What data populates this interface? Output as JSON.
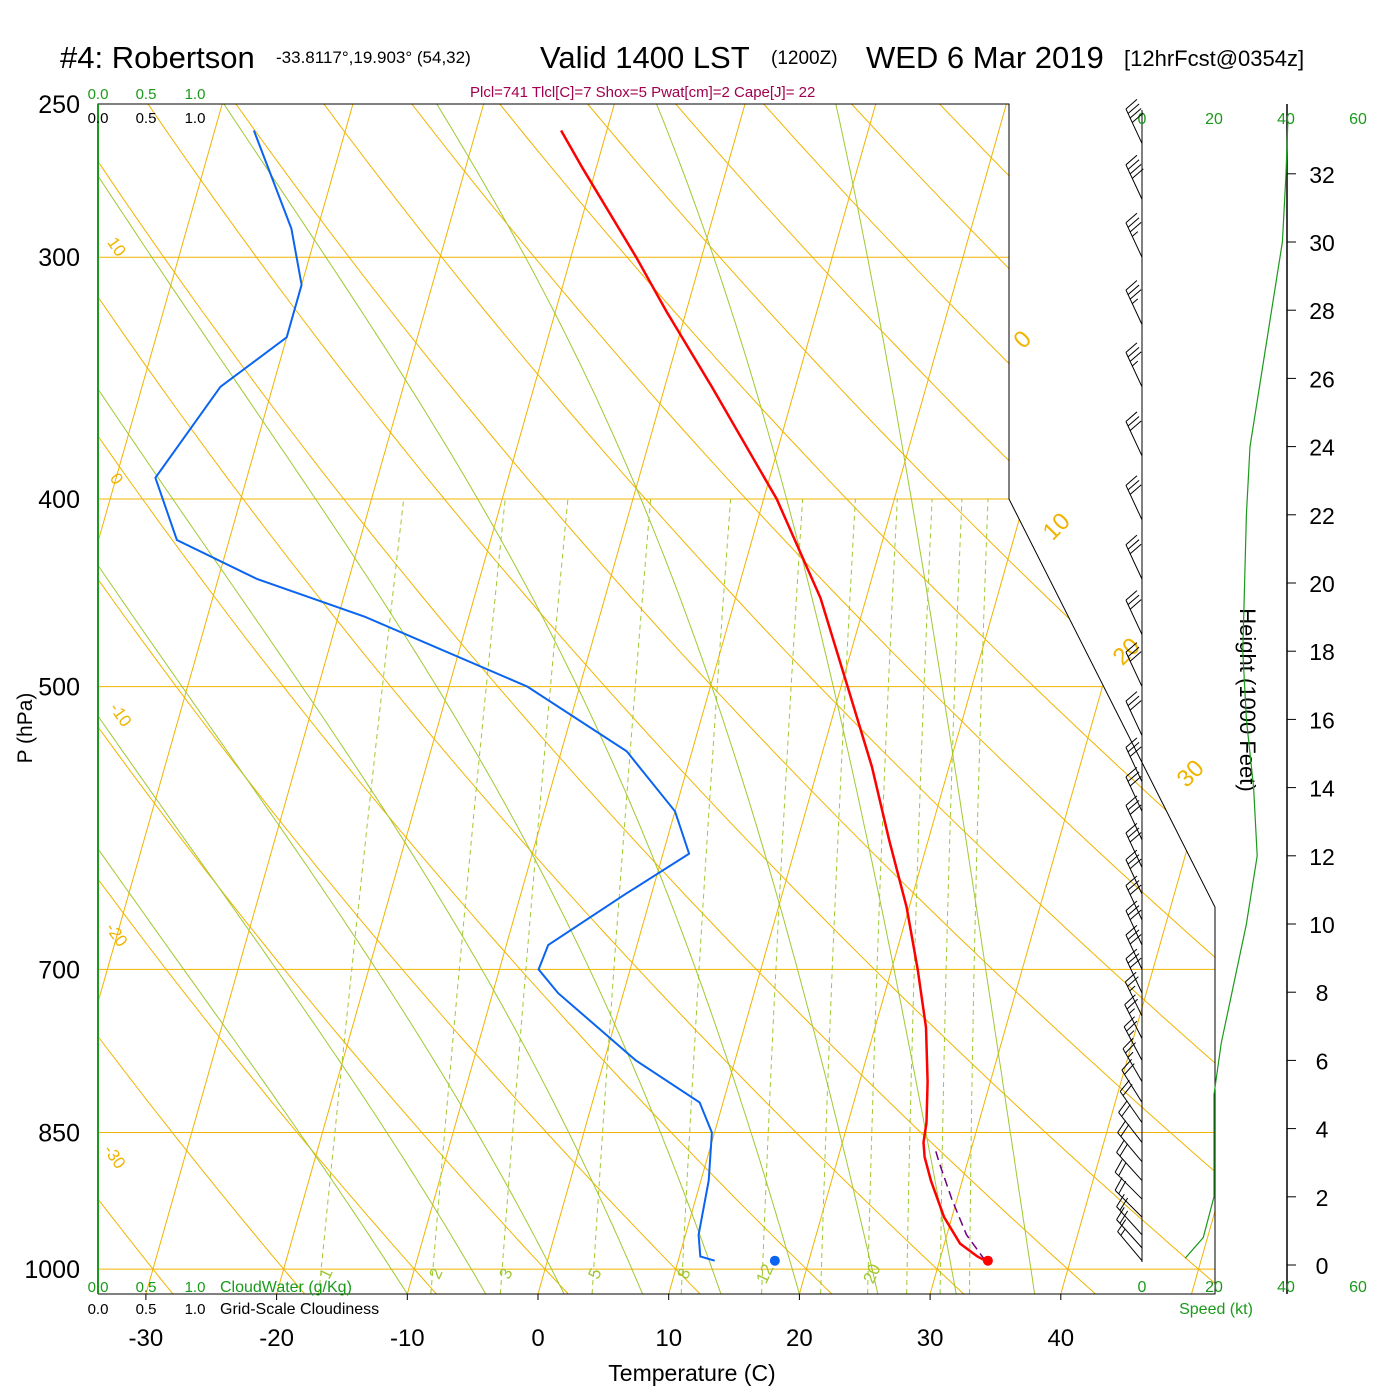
{
  "header": {
    "station": "#4: Robertson",
    "coords": "-33.8117°,19.903° (54,32)",
    "valid": "Valid 1400 LST",
    "zulu": "(1200Z)",
    "date": "WED 6 Mar 2019",
    "forecast": "[12hrFcst@0354z]",
    "stats": "Plcl=741 Tlcl[C]=7 Shox=5 Pwat[cm]=2 Cape[J]= 22"
  },
  "colors": {
    "temperature": "#ff0000",
    "dewpoint": "#0a64f0",
    "isobar_isotherm": "#f0b400",
    "dry_adiabat": "#f0b400",
    "moist_adiabat": "#a0c832",
    "mixing_ratio": "#a0c832",
    "wind_speed": "#1a9a1a",
    "parcel": "#6e0080",
    "cloud_axis": "#1a9a1a"
  },
  "chart_data": {
    "type": "skew-t log-p sounding",
    "xlabel": "Temperature (C)",
    "ylabel": "P (hPa)",
    "right_label": "Height (1000 Feet)",
    "x_ticks": [
      -30,
      -20,
      -10,
      0,
      10,
      20,
      30,
      40
    ],
    "pressure_ticks": [
      250,
      300,
      400,
      500,
      700,
      850,
      1000
    ],
    "height_ticks": [
      0,
      2,
      4,
      6,
      8,
      10,
      12,
      14,
      16,
      18,
      20,
      22,
      24,
      26,
      28,
      30,
      32
    ],
    "temp_range": [
      -34,
      36
    ],
    "pressure_range": [
      1030,
      250
    ],
    "isotherm_labels": [
      "0",
      "10",
      "20",
      "30"
    ],
    "dry_adiabat_labels": [
      "10",
      "0",
      "-10",
      "-20",
      "-30"
    ],
    "mixing_ratio_labels": [
      "1",
      "2",
      "3",
      "5",
      "8",
      "12",
      "20"
    ],
    "cloud_axis_top": {
      "cloudwater": [
        "0.0",
        "0.5",
        "1.0"
      ],
      "cloudiness": [
        "0.0",
        "0.5",
        "1.0"
      ]
    },
    "cloud_axis_bottom": {
      "cloudwater": [
        "0.0",
        "0.5",
        "1.0"
      ],
      "cloudwater_label": "CloudWater (g/Kg)",
      "cloudiness": [
        "0.0",
        "0.5",
        "1.0"
      ],
      "cloudiness_label": "Grid-Scale Cloudiness"
    },
    "wind_speed_ticks": [
      "0",
      "20",
      "40",
      "60"
    ],
    "wind_speed_label": "Speed (kt)",
    "temperature_profile": [
      {
        "p": 990,
        "t": 33.5
      },
      {
        "p": 985,
        "t": 32.8
      },
      {
        "p": 970,
        "t": 31.2
      },
      {
        "p": 940,
        "t": 29.4
      },
      {
        "p": 900,
        "t": 27.6
      },
      {
        "p": 875,
        "t": 26.6
      },
      {
        "p": 860,
        "t": 26.2
      },
      {
        "p": 840,
        "t": 26.0
      },
      {
        "p": 800,
        "t": 25.2
      },
      {
        "p": 750,
        "t": 23.9
      },
      {
        "p": 700,
        "t": 22.0
      },
      {
        "p": 650,
        "t": 19.8
      },
      {
        "p": 600,
        "t": 17.0
      },
      {
        "p": 550,
        "t": 14.1
      },
      {
        "p": 500,
        "t": 10.5
      },
      {
        "p": 450,
        "t": 6.5
      },
      {
        "p": 400,
        "t": 1.0
      },
      {
        "p": 350,
        "t": -6.4
      },
      {
        "p": 320,
        "t": -11.5
      },
      {
        "p": 300,
        "t": -15.0
      },
      {
        "p": 270,
        "t": -21.0
      },
      {
        "p": 258,
        "t": -23.5
      }
    ],
    "dewpoint_profile": [
      {
        "p": 990,
        "t": 12.8
      },
      {
        "p": 985,
        "t": 11.6
      },
      {
        "p": 960,
        "t": 11.0
      },
      {
        "p": 900,
        "t": 10.6
      },
      {
        "p": 850,
        "t": 9.8
      },
      {
        "p": 820,
        "t": 8.2
      },
      {
        "p": 780,
        "t": 2.4
      },
      {
        "p": 720,
        "t": -5.0
      },
      {
        "p": 700,
        "t": -7.0
      },
      {
        "p": 680,
        "t": -6.8
      },
      {
        "p": 640,
        "t": -2.0
      },
      {
        "p": 610,
        "t": 2.0
      },
      {
        "p": 580,
        "t": 0.0
      },
      {
        "p": 540,
        "t": -5.0
      },
      {
        "p": 500,
        "t": -14.0
      },
      {
        "p": 460,
        "t": -28.0
      },
      {
        "p": 440,
        "t": -37.0
      },
      {
        "p": 420,
        "t": -44.0
      },
      {
        "p": 390,
        "t": -47.0
      },
      {
        "p": 350,
        "t": -44.0
      },
      {
        "p": 330,
        "t": -40.0
      },
      {
        "p": 310,
        "t": -40.0
      },
      {
        "p": 290,
        "t": -42.0
      },
      {
        "p": 258,
        "t": -47.0
      }
    ],
    "parcel_profile": [
      {
        "p": 990,
        "t": 33.5
      },
      {
        "p": 960,
        "t": 31.5
      },
      {
        "p": 920,
        "t": 29.6
      },
      {
        "p": 880,
        "t": 27.8
      },
      {
        "p": 866,
        "t": 27.2
      }
    ],
    "surface_temperature": {
      "p": 990,
      "t": 33.7
    },
    "surface_dewpoint": {
      "p": 990,
      "t": 17.4
    },
    "wind_speed_profile": [
      {
        "h": 0.2,
        "s": 12
      },
      {
        "h": 0.8,
        "s": 17
      },
      {
        "h": 2,
        "s": 20
      },
      {
        "h": 3.5,
        "s": 20
      },
      {
        "h": 5,
        "s": 20
      },
      {
        "h": 6.5,
        "s": 22
      },
      {
        "h": 8,
        "s": 25
      },
      {
        "h": 10,
        "s": 29
      },
      {
        "h": 12,
        "s": 32
      },
      {
        "h": 14,
        "s": 31
      },
      {
        "h": 16,
        "s": 29
      },
      {
        "h": 18,
        "s": 28
      },
      {
        "h": 20,
        "s": 28.5
      },
      {
        "h": 22,
        "s": 29
      },
      {
        "h": 24,
        "s": 30
      },
      {
        "h": 26,
        "s": 33
      },
      {
        "h": 28,
        "s": 36
      },
      {
        "h": 30,
        "s": 39
      },
      {
        "h": 32,
        "s": 40
      },
      {
        "h": 33.5,
        "s": 40.5
      }
    ],
    "wind_barbs": [
      {
        "p": 990,
        "dir": 320,
        "spd": 15
      },
      {
        "p": 975,
        "dir": 318,
        "spd": 18
      },
      {
        "p": 960,
        "dir": 318,
        "spd": 20
      },
      {
        "p": 940,
        "dir": 315,
        "spd": 20
      },
      {
        "p": 920,
        "dir": 315,
        "spd": 20
      },
      {
        "p": 900,
        "dir": 318,
        "spd": 20
      },
      {
        "p": 880,
        "dir": 320,
        "spd": 20
      },
      {
        "p": 860,
        "dir": 322,
        "spd": 20
      },
      {
        "p": 840,
        "dir": 325,
        "spd": 20
      },
      {
        "p": 820,
        "dir": 328,
        "spd": 22
      },
      {
        "p": 800,
        "dir": 330,
        "spd": 24
      },
      {
        "p": 780,
        "dir": 332,
        "spd": 25
      },
      {
        "p": 760,
        "dir": 333,
        "spd": 26
      },
      {
        "p": 740,
        "dir": 334,
        "spd": 27
      },
      {
        "p": 720,
        "dir": 335,
        "spd": 28
      },
      {
        "p": 700,
        "dir": 335,
        "spd": 29
      },
      {
        "p": 680,
        "dir": 335,
        "spd": 30
      },
      {
        "p": 660,
        "dir": 335,
        "spd": 31
      },
      {
        "p": 640,
        "dir": 335,
        "spd": 31
      },
      {
        "p": 620,
        "dir": 335,
        "spd": 31
      },
      {
        "p": 600,
        "dir": 335,
        "spd": 30
      },
      {
        "p": 580,
        "dir": 335,
        "spd": 30
      },
      {
        "p": 560,
        "dir": 335,
        "spd": 29
      },
      {
        "p": 530,
        "dir": 335,
        "spd": 29
      },
      {
        "p": 500,
        "dir": 335,
        "spd": 28
      },
      {
        "p": 470,
        "dir": 335,
        "spd": 28
      },
      {
        "p": 440,
        "dir": 335,
        "spd": 29
      },
      {
        "p": 410,
        "dir": 335,
        "spd": 29
      },
      {
        "p": 380,
        "dir": 335,
        "spd": 30
      },
      {
        "p": 350,
        "dir": 335,
        "spd": 33
      },
      {
        "p": 325,
        "dir": 335,
        "spd": 35
      },
      {
        "p": 300,
        "dir": 335,
        "spd": 37
      },
      {
        "p": 280,
        "dir": 335,
        "spd": 39
      },
      {
        "p": 262,
        "dir": 335,
        "spd": 40
      }
    ]
  }
}
